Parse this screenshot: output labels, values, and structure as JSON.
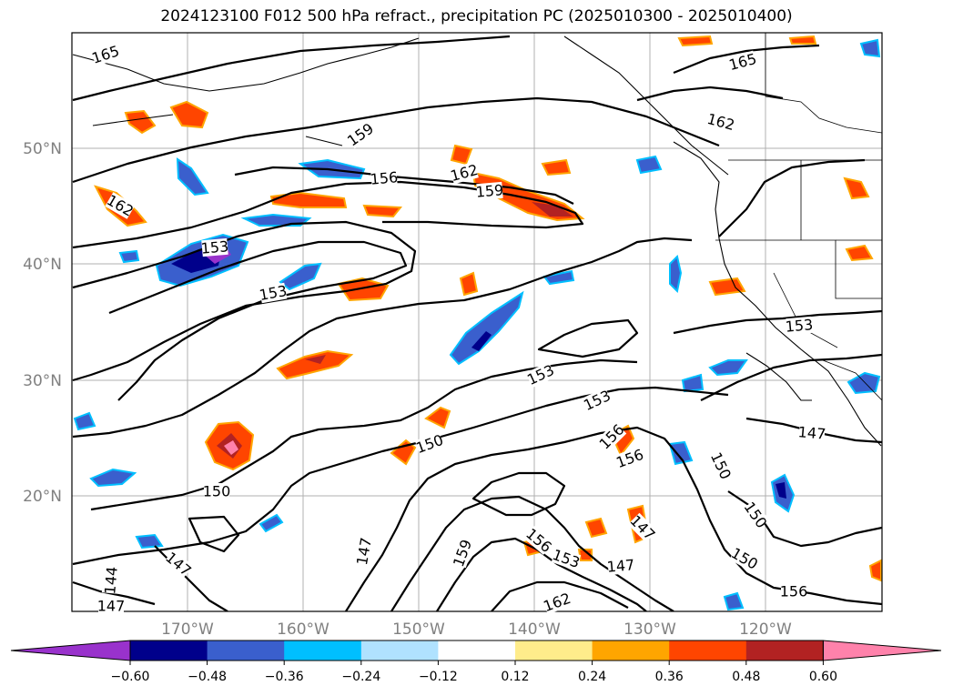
{
  "title": "2024123100 F012 500 hPa refract., precipitation PC (2025010300 - 2025010400)",
  "lat_ticks": [
    "50°N",
    "40°N",
    "30°N",
    "20°N"
  ],
  "lon_ticks": [
    "170°W",
    "160°W",
    "150°W",
    "140°W",
    "130°W",
    "120°W"
  ],
  "contour_labels": [
    "165",
    "159",
    "156",
    "162",
    "159",
    "162",
    "165",
    "162",
    "153",
    "153",
    "153",
    "156",
    "153",
    "156",
    "147",
    "150",
    "150",
    "150",
    "159",
    "156",
    "153",
    "147",
    "147",
    "150",
    "156",
    "162",
    "147",
    "147",
    "144",
    "147",
    "150",
    "153"
  ],
  "colorbar": {
    "ticks": [
      "−0.60",
      "−0.48",
      "−0.36",
      "−0.24",
      "−0.12",
      "0.12",
      "0.24",
      "0.36",
      "0.48",
      "0.60"
    ],
    "colors": [
      "#9932cc",
      "#00008b",
      "#3a5fcd",
      "#00bfff",
      "#b0e2ff",
      "#ffffff",
      "#ffec8b",
      "#ffa500",
      "#ff4500",
      "#b22222",
      "#ff82ab"
    ]
  }
}
